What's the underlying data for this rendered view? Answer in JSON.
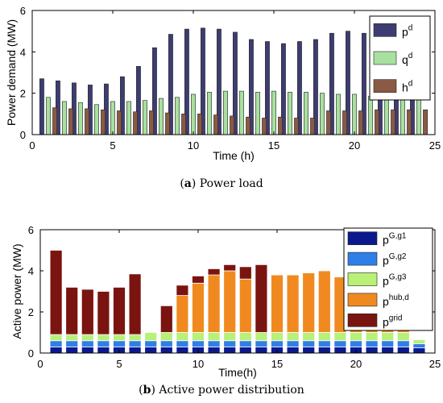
{
  "chart_data": [
    {
      "type": "bar",
      "panel": "a",
      "caption_tag": "a",
      "caption_text": "Power load",
      "xlabel": "Time (h)",
      "ylabel": "Power demand (MW)",
      "xlim": [
        0,
        25
      ],
      "ylim": [
        0,
        6
      ],
      "xticks": [
        0,
        5,
        10,
        15,
        20,
        25
      ],
      "yticks": [
        0,
        2,
        4,
        6
      ],
      "legend_position": "top-right",
      "x": [
        1,
        2,
        3,
        4,
        5,
        6,
        7,
        8,
        9,
        10,
        11,
        12,
        13,
        14,
        15,
        16,
        17,
        18,
        19,
        20,
        21,
        22,
        23,
        24
      ],
      "series": [
        {
          "name": "p",
          "sup": "d",
          "color": "#3d3d73",
          "values": [
            2.7,
            2.6,
            2.5,
            2.4,
            2.45,
            2.8,
            3.3,
            4.2,
            4.85,
            5.1,
            5.15,
            5.1,
            4.95,
            4.6,
            4.5,
            4.4,
            4.5,
            4.6,
            4.9,
            5.0,
            4.9,
            3.9,
            3.5,
            3.3
          ]
        },
        {
          "name": "q",
          "sup": "d",
          "color": "#a8e0a0",
          "values": [
            1.8,
            1.6,
            1.55,
            1.45,
            1.6,
            1.6,
            1.65,
            1.75,
            1.8,
            1.95,
            2.05,
            2.1,
            2.1,
            2.05,
            2.1,
            2.05,
            2.05,
            2.0,
            1.95,
            1.95,
            1.85,
            1.85,
            1.8,
            1.8
          ]
        },
        {
          "name": "h",
          "sup": "d",
          "color": "#8a5a44",
          "values": [
            1.3,
            1.25,
            1.25,
            1.2,
            1.15,
            1.1,
            1.15,
            1.05,
            1.0,
            1.0,
            0.95,
            0.9,
            0.85,
            0.8,
            0.85,
            0.8,
            0.8,
            1.15,
            1.15,
            1.15,
            1.2,
            1.2,
            1.2,
            1.2
          ]
        }
      ]
    },
    {
      "type": "stacked-bar",
      "panel": "b",
      "caption_tag": "b",
      "caption_text": "Active power distribution",
      "xlabel": "Time(h)",
      "ylabel": "Active power (MW)",
      "xlim": [
        0,
        25
      ],
      "ylim": [
        0,
        6
      ],
      "xticks": [
        0,
        5,
        10,
        15,
        20,
        25
      ],
      "yticks": [
        0,
        2,
        4,
        6
      ],
      "legend_position": "top-right",
      "x": [
        1,
        2,
        3,
        4,
        5,
        6,
        7,
        8,
        9,
        10,
        11,
        12,
        13,
        14,
        15,
        16,
        17,
        18,
        19,
        20,
        21,
        22,
        23,
        24
      ],
      "series": [
        {
          "name": "p",
          "sup": "G,g1",
          "color": "#0a1a8c",
          "values": [
            0.3,
            0.3,
            0.3,
            0.3,
            0.3,
            0.3,
            0.3,
            0.3,
            0.3,
            0.3,
            0.3,
            0.3,
            0.3,
            0.3,
            0.3,
            0.3,
            0.3,
            0.3,
            0.3,
            0.3,
            0.3,
            0.3,
            0.3,
            0.25
          ]
        },
        {
          "name": "p",
          "sup": "G,g2",
          "color": "#2f7fe8",
          "values": [
            0.3,
            0.3,
            0.3,
            0.3,
            0.3,
            0.3,
            0.3,
            0.3,
            0.3,
            0.3,
            0.3,
            0.3,
            0.3,
            0.3,
            0.3,
            0.3,
            0.3,
            0.3,
            0.3,
            0.3,
            0.3,
            0.3,
            0.3,
            0.2
          ]
        },
        {
          "name": "p",
          "sup": "G,g3",
          "color": "#b8f078",
          "values": [
            0.3,
            0.3,
            0.3,
            0.3,
            0.3,
            0.3,
            0.4,
            0.4,
            0.4,
            0.4,
            0.4,
            0.4,
            0.4,
            0.4,
            0.4,
            0.4,
            0.4,
            0.4,
            0.4,
            0.4,
            0.4,
            0.4,
            0.4,
            0.2
          ]
        },
        {
          "name": "p",
          "sup": "hub,d",
          "color": "#f08a20",
          "values": [
            0,
            0,
            0,
            0,
            0,
            0,
            0,
            0,
            1.8,
            2.4,
            2.8,
            3.0,
            2.6,
            0,
            2.8,
            2.8,
            2.9,
            3.0,
            2.7,
            2.6,
            2.5,
            1.8,
            0.5,
            0
          ]
        },
        {
          "name": "p",
          "sup": "grid",
          "color": "#7a1410",
          "values": [
            4.1,
            2.3,
            2.2,
            2.1,
            2.3,
            2.95,
            0,
            1.3,
            0.5,
            0.35,
            0.3,
            0.3,
            0.6,
            3.3,
            0,
            0,
            0,
            0,
            0,
            0,
            0,
            0,
            0,
            0
          ]
        }
      ]
    }
  ]
}
